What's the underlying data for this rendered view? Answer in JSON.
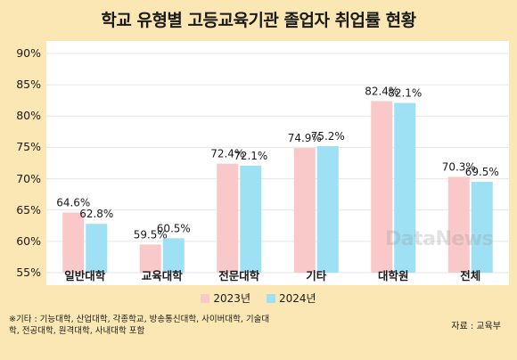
{
  "title": "학교 유형별 고등교육기관 졸업자 취업률 현황",
  "footnote": "※기타 : 기능대학, 산업대학, 각종학교, 방송통신대학, 사이버대학, 기술대학, 전공대학, 원격대학, 사내대학 포함",
  "source": "자료 : 교육부",
  "watermark": "DataNews",
  "colors": {
    "s2023": "#f9c9c9",
    "s2024": "#9ee0f4",
    "background": "#fbe7b3"
  },
  "chart_data": {
    "type": "bar",
    "categories": [
      "일반대학",
      "교육대학",
      "전문대학",
      "기타",
      "대학원",
      "전체"
    ],
    "series": [
      {
        "name": "2023년",
        "values": [
          64.6,
          59.5,
          72.4,
          74.9,
          82.4,
          70.3
        ],
        "labels": [
          "64.6%",
          "59.5%",
          "72.4%",
          "74.9%",
          "82.4%",
          "70.3%"
        ]
      },
      {
        "name": "2024년",
        "values": [
          62.8,
          60.5,
          72.1,
          75.2,
          82.1,
          69.5
        ],
        "labels": [
          "62.8%",
          "60.5%",
          "72.1%",
          "75.2%",
          "82.1%",
          "69.5%"
        ]
      }
    ],
    "ylim": [
      55,
      90
    ],
    "yticks": [
      "55%",
      "60%",
      "65%",
      "70%",
      "75%",
      "80%",
      "85%",
      "90%"
    ],
    "ytick_values": [
      55,
      60,
      65,
      70,
      75,
      80,
      85,
      90
    ],
    "legend": "bottom",
    "grid": true
  }
}
